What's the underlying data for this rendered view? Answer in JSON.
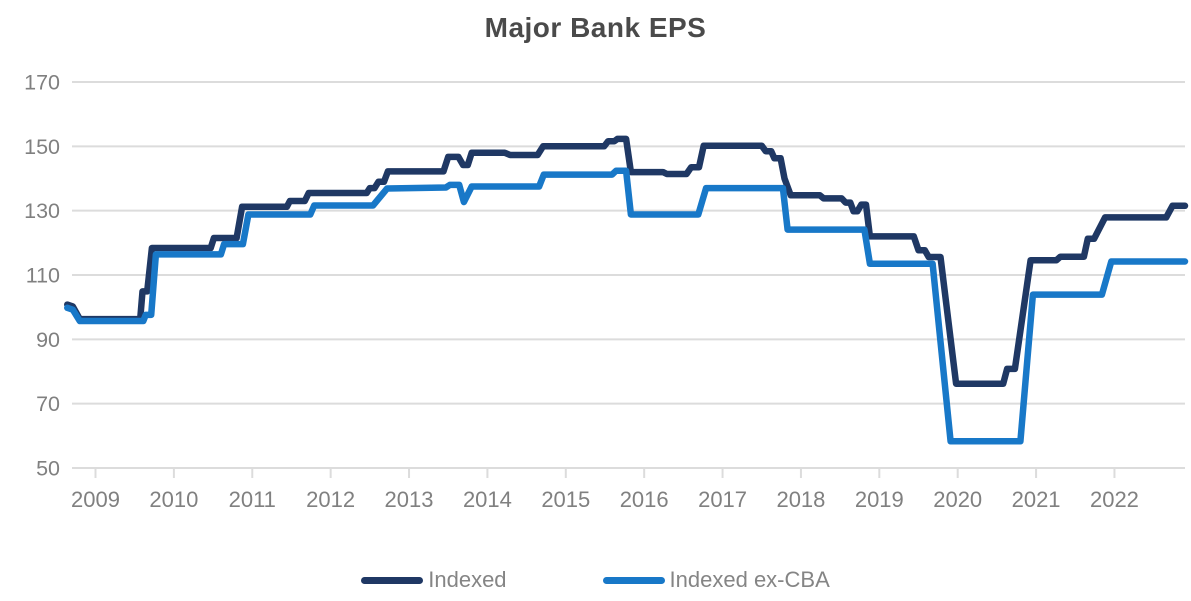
{
  "title": "Major Bank EPS",
  "colors": {
    "indexed_line": "#1F3864",
    "indexed_ex_cba_line": "#1878C8",
    "gridline": "#DCDCDC",
    "tick_mark": "#DCDCDC",
    "axis_text": "#808080",
    "title_text": "#4A4A4A",
    "background": "#FFFFFF"
  },
  "legend": {
    "items": [
      {
        "label": "Indexed",
        "color": "#1F3864"
      },
      {
        "label": "Indexed ex-CBA",
        "color": "#1878C8"
      }
    ],
    "position": "bottom-center"
  },
  "chart_data": {
    "type": "line",
    "title": "Major Bank EPS",
    "xlabel": "",
    "ylabel": "",
    "grid": "horizontal",
    "legend_position": "bottom",
    "x_axis": {
      "tick_labels": [
        "2009",
        "2010",
        "2011",
        "2012",
        "2013",
        "2014",
        "2015",
        "2016",
        "2017",
        "2018",
        "2019",
        "2020",
        "2021",
        "2022"
      ],
      "tick_values": [
        2009,
        2010,
        2011,
        2012,
        2013,
        2014,
        2015,
        2016,
        2017,
        2018,
        2019,
        2020,
        2021,
        2022
      ],
      "range": [
        2008.7,
        2022.9
      ]
    },
    "y_axis": {
      "tick_labels": [
        "50",
        "70",
        "90",
        "110",
        "130",
        "150",
        "170"
      ],
      "tick_values": [
        50,
        70,
        90,
        110,
        130,
        150,
        170
      ],
      "range": [
        50,
        170
      ]
    },
    "series": [
      {
        "name": "Indexed",
        "color": "#1F3864",
        "points": [
          [
            2008.64,
            100.8
          ],
          [
            2008.71,
            100.2
          ],
          [
            2008.8,
            96.3
          ],
          [
            2009.57,
            96.3
          ],
          [
            2009.6,
            104.9
          ],
          [
            2009.66,
            104.9
          ],
          [
            2009.72,
            118.4
          ],
          [
            2010.47,
            118.4
          ],
          [
            2010.51,
            121.5
          ],
          [
            2010.8,
            121.5
          ],
          [
            2010.87,
            131.2
          ],
          [
            2011.44,
            131.2
          ],
          [
            2011.48,
            133.0
          ],
          [
            2011.67,
            133.0
          ],
          [
            2011.72,
            135.5
          ],
          [
            2012.46,
            135.5
          ],
          [
            2012.5,
            137.0
          ],
          [
            2012.56,
            137.0
          ],
          [
            2012.61,
            139.0
          ],
          [
            2012.68,
            139.0
          ],
          [
            2012.73,
            142.2
          ],
          [
            2013.44,
            142.2
          ],
          [
            2013.5,
            146.7
          ],
          [
            2013.63,
            146.7
          ],
          [
            2013.69,
            144.2
          ],
          [
            2013.75,
            144.2
          ],
          [
            2013.8,
            148.0
          ],
          [
            2014.22,
            148.0
          ],
          [
            2014.29,
            147.3
          ],
          [
            2014.64,
            147.3
          ],
          [
            2014.71,
            150.0
          ],
          [
            2015.49,
            150.0
          ],
          [
            2015.54,
            151.6
          ],
          [
            2015.62,
            151.6
          ],
          [
            2015.66,
            152.3
          ],
          [
            2015.77,
            152.3
          ],
          [
            2015.83,
            142.0
          ],
          [
            2016.24,
            142.0
          ],
          [
            2016.29,
            141.4
          ],
          [
            2016.54,
            141.4
          ],
          [
            2016.6,
            143.5
          ],
          [
            2016.7,
            143.5
          ],
          [
            2016.76,
            150.2
          ],
          [
            2017.5,
            150.2
          ],
          [
            2017.55,
            148.5
          ],
          [
            2017.62,
            148.5
          ],
          [
            2017.66,
            146.3
          ],
          [
            2017.74,
            146.3
          ],
          [
            2017.79,
            140.0
          ],
          [
            2017.87,
            134.8
          ],
          [
            2018.24,
            134.8
          ],
          [
            2018.29,
            133.8
          ],
          [
            2018.52,
            133.8
          ],
          [
            2018.57,
            132.5
          ],
          [
            2018.63,
            132.5
          ],
          [
            2018.67,
            129.8
          ],
          [
            2018.72,
            129.8
          ],
          [
            2018.77,
            131.9
          ],
          [
            2018.83,
            131.9
          ],
          [
            2018.88,
            122.0
          ],
          [
            2019.44,
            122.0
          ],
          [
            2019.5,
            117.7
          ],
          [
            2019.58,
            117.7
          ],
          [
            2019.63,
            115.6
          ],
          [
            2019.78,
            115.6
          ],
          [
            2019.98,
            76.2
          ],
          [
            2020.58,
            76.2
          ],
          [
            2020.63,
            80.8
          ],
          [
            2020.73,
            80.8
          ],
          [
            2020.93,
            114.6
          ],
          [
            2021.26,
            114.6
          ],
          [
            2021.31,
            115.7
          ],
          [
            2021.61,
            115.7
          ],
          [
            2021.66,
            121.3
          ],
          [
            2021.74,
            121.3
          ],
          [
            2021.88,
            127.9
          ],
          [
            2022.66,
            127.9
          ],
          [
            2022.74,
            131.5
          ],
          [
            2022.9,
            131.5
          ]
        ]
      },
      {
        "name": "Indexed ex-CBA",
        "color": "#1878C8",
        "points": [
          [
            2008.64,
            99.8
          ],
          [
            2008.71,
            99.2
          ],
          [
            2008.8,
            95.7
          ],
          [
            2009.61,
            95.7
          ],
          [
            2009.64,
            97.6
          ],
          [
            2009.71,
            97.6
          ],
          [
            2009.77,
            116.4
          ],
          [
            2010.6,
            116.4
          ],
          [
            2010.64,
            119.6
          ],
          [
            2010.88,
            119.6
          ],
          [
            2010.95,
            128.8
          ],
          [
            2011.74,
            128.8
          ],
          [
            2011.79,
            131.6
          ],
          [
            2012.54,
            131.6
          ],
          [
            2012.72,
            136.9
          ],
          [
            2013.47,
            137.2
          ],
          [
            2013.52,
            138.0
          ],
          [
            2013.64,
            138.0
          ],
          [
            2013.7,
            132.7
          ],
          [
            2013.8,
            137.5
          ],
          [
            2014.66,
            137.5
          ],
          [
            2014.72,
            141.2
          ],
          [
            2015.59,
            141.2
          ],
          [
            2015.64,
            142.4
          ],
          [
            2015.77,
            142.4
          ],
          [
            2015.83,
            128.8
          ],
          [
            2016.69,
            128.8
          ],
          [
            2016.79,
            137.0
          ],
          [
            2017.77,
            137.0
          ],
          [
            2017.83,
            124.1
          ],
          [
            2018.81,
            124.1
          ],
          [
            2018.88,
            113.5
          ],
          [
            2019.68,
            113.5
          ],
          [
            2019.91,
            58.3
          ],
          [
            2020.8,
            58.3
          ],
          [
            2020.96,
            103.9
          ],
          [
            2021.84,
            103.9
          ],
          [
            2021.96,
            114.2
          ],
          [
            2022.9,
            114.2
          ]
        ]
      }
    ]
  }
}
